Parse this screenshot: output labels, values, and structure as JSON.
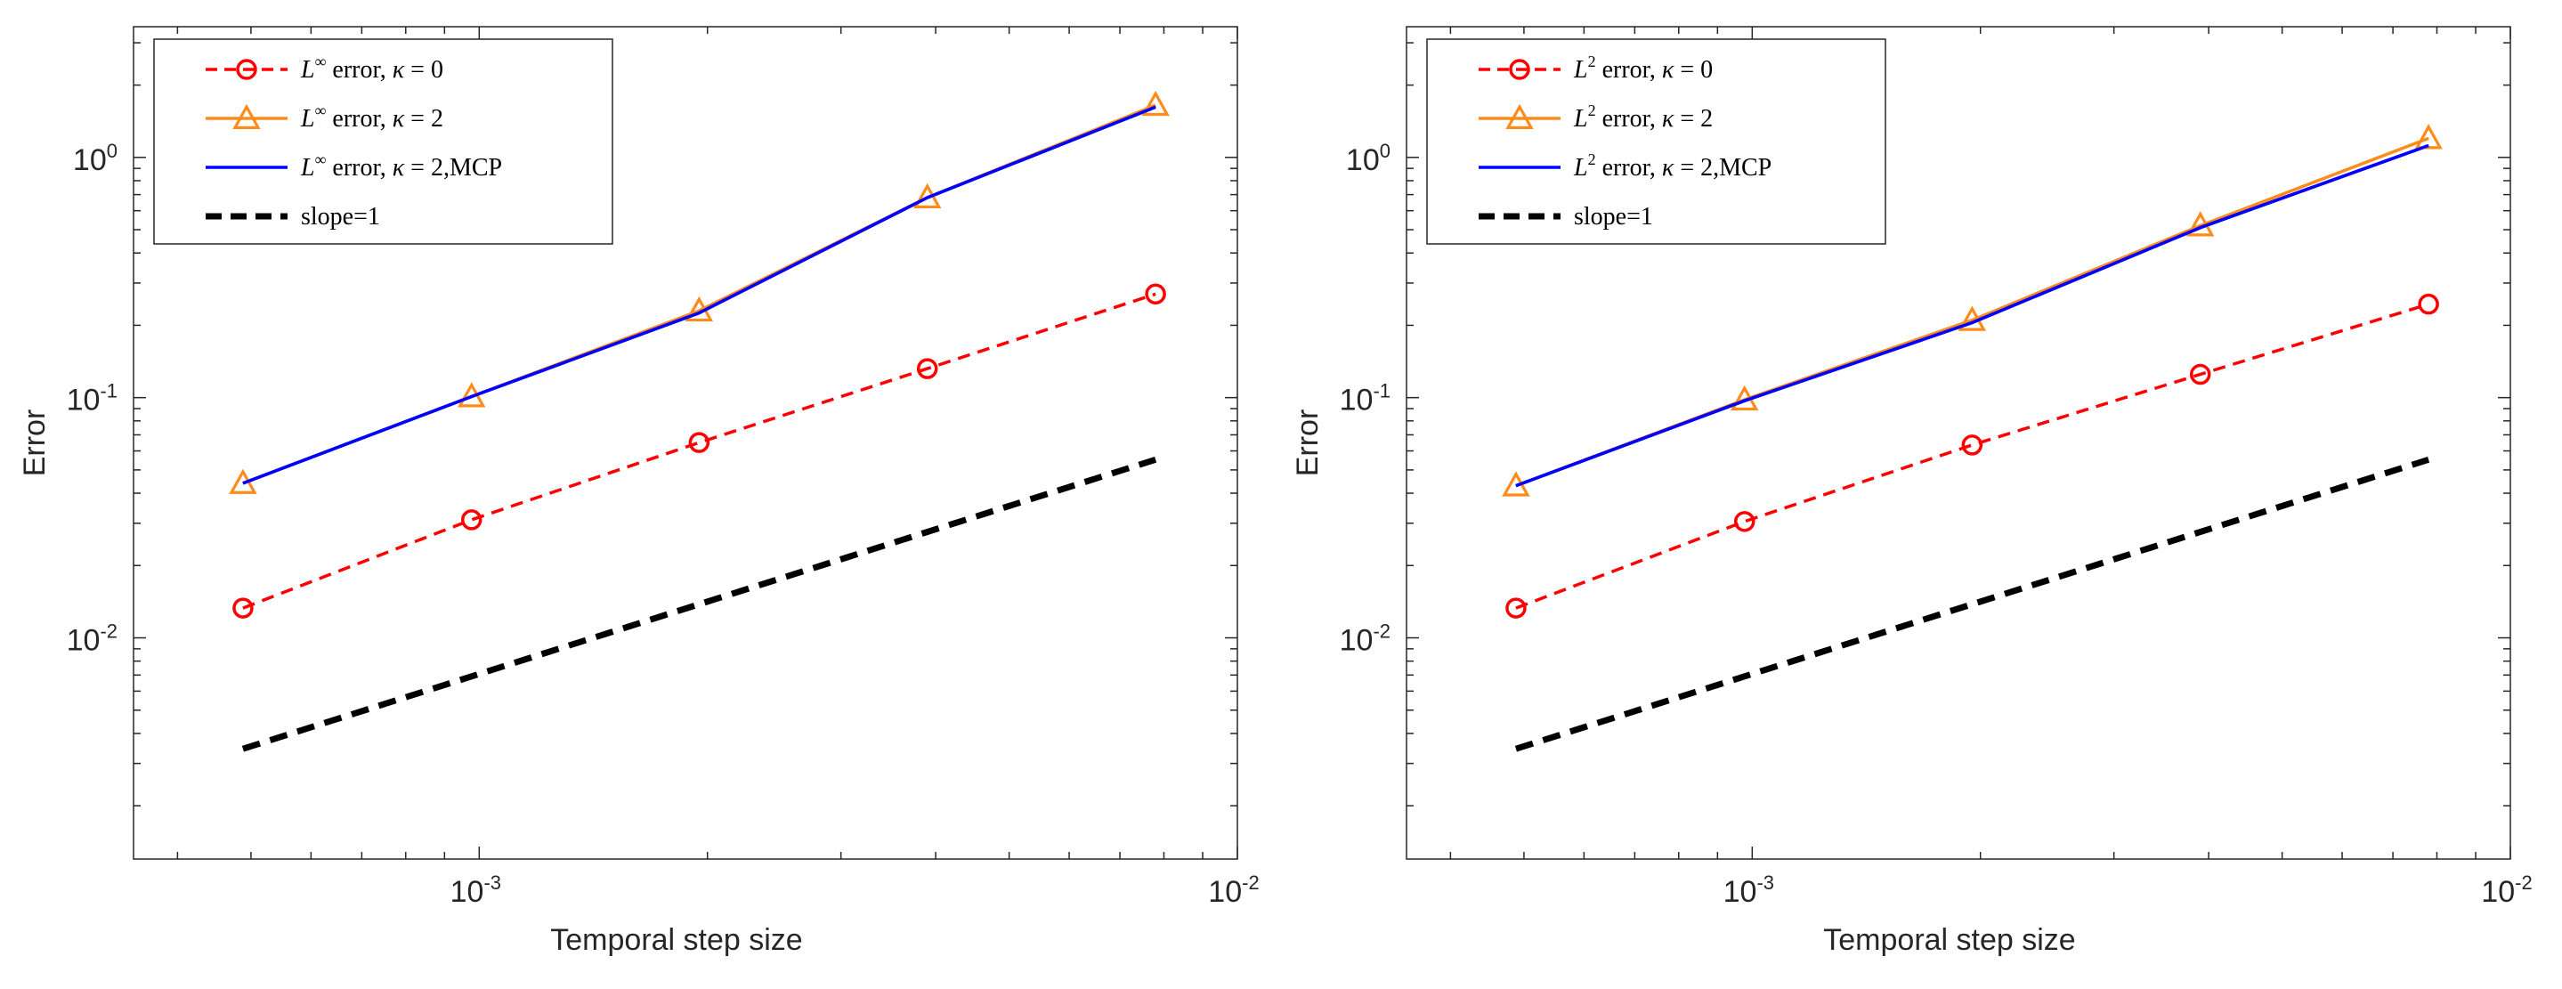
{
  "figure": {
    "x_tick_base": "10",
    "y_tick_base": "10"
  },
  "chart_data": [
    {
      "type": "line",
      "xscale": "log",
      "yscale": "log",
      "xlabel": "Temporal step size",
      "ylabel": "Error",
      "xlim": [
        0.00035,
        0.01
      ],
      "ylim": [
        0.0012,
        3.5
      ],
      "xticks": [
        {
          "value": 0.001,
          "exp": "-3"
        },
        {
          "value": 0.01,
          "exp": "-2"
        }
      ],
      "yticks": [
        {
          "value": 0.01,
          "exp": "-2"
        },
        {
          "value": 0.1,
          "exp": "-1"
        },
        {
          "value": 1,
          "exp": "0"
        }
      ],
      "legend_position": "top-left",
      "series": [
        {
          "name": "L∞ error, κ = 0",
          "legend": {
            "norm": "L",
            "sup": "∞",
            "rest": " error, ",
            "kappa": "κ",
            "value": " = 0",
            "suffix": ""
          },
          "color": "#ff0000",
          "style": "dashed",
          "marker": "circle",
          "x": [
            0.000488,
            0.000977,
            0.00195,
            0.0039,
            0.0078
          ],
          "y": [
            0.0133,
            0.031,
            0.065,
            0.132,
            0.27
          ]
        },
        {
          "name": "L∞ error, κ = 2",
          "legend": {
            "norm": "L",
            "sup": "∞",
            "rest": " error, ",
            "kappa": "κ",
            "value": " = 2",
            "suffix": ""
          },
          "color": "#ff8c1a",
          "style": "solid",
          "marker": "triangle",
          "x": [
            0.000488,
            0.000977,
            0.00195,
            0.0039,
            0.0078
          ],
          "y": [
            0.044,
            0.101,
            0.23,
            0.68,
            1.65
          ]
        },
        {
          "name": "L∞ error, κ = 2,MCP",
          "legend": {
            "norm": "L",
            "sup": "∞",
            "rest": " error, ",
            "kappa": "κ",
            "value": " = 2",
            "suffix": ",MCP"
          },
          "color": "#0000ff",
          "style": "solid",
          "marker": "none",
          "x": [
            0.000488,
            0.000977,
            0.00195,
            0.0039,
            0.0078
          ],
          "y": [
            0.044,
            0.101,
            0.225,
            0.68,
            1.62
          ]
        },
        {
          "name": "slope=1",
          "legend": {
            "text": "slope=1"
          },
          "color": "#000000",
          "style": "dashed-thick",
          "marker": "none",
          "x": [
            0.000488,
            0.0078
          ],
          "y": [
            0.00345,
            0.0552
          ]
        }
      ]
    },
    {
      "type": "line",
      "xscale": "log",
      "yscale": "log",
      "xlabel": "Temporal step size",
      "ylabel": "Error",
      "xlim": [
        0.00035,
        0.01
      ],
      "ylim": [
        0.0012,
        3.5
      ],
      "xticks": [
        {
          "value": 0.001,
          "exp": "-3"
        },
        {
          "value": 0.01,
          "exp": "-2"
        }
      ],
      "yticks": [
        {
          "value": 0.01,
          "exp": "-2"
        },
        {
          "value": 0.1,
          "exp": "-1"
        },
        {
          "value": 1,
          "exp": "0"
        }
      ],
      "legend_position": "top-left",
      "series": [
        {
          "name": "L2 error, κ = 0",
          "legend": {
            "norm": "L",
            "sup": "2",
            "rest": " error, ",
            "kappa": "κ",
            "value": " = 0",
            "suffix": ""
          },
          "color": "#ff0000",
          "style": "dashed",
          "marker": "circle",
          "x": [
            0.000488,
            0.000977,
            0.00195,
            0.0039,
            0.0078
          ],
          "y": [
            0.0133,
            0.0305,
            0.0635,
            0.125,
            0.245
          ]
        },
        {
          "name": "L2 error, κ = 2",
          "legend": {
            "norm": "L",
            "sup": "2",
            "rest": " error, ",
            "kappa": "κ",
            "value": " = 2",
            "suffix": ""
          },
          "color": "#ff8c1a",
          "style": "solid",
          "marker": "triangle",
          "x": [
            0.000488,
            0.000977,
            0.00195,
            0.0039,
            0.0078
          ],
          "y": [
            0.043,
            0.098,
            0.21,
            0.52,
            1.2
          ]
        },
        {
          "name": "L2 error, κ = 2,MCP",
          "legend": {
            "norm": "L",
            "sup": "2",
            "rest": " error, ",
            "kappa": "κ",
            "value": " = 2",
            "suffix": ",MCP"
          },
          "color": "#0000ff",
          "style": "solid",
          "marker": "none",
          "x": [
            0.000488,
            0.000977,
            0.00195,
            0.0039,
            0.0078
          ],
          "y": [
            0.043,
            0.097,
            0.205,
            0.51,
            1.12
          ]
        },
        {
          "name": "slope=1",
          "legend": {
            "text": "slope=1"
          },
          "color": "#000000",
          "style": "dashed-thick",
          "marker": "none",
          "x": [
            0.000488,
            0.0078
          ],
          "y": [
            0.00345,
            0.0552
          ]
        }
      ]
    }
  ]
}
